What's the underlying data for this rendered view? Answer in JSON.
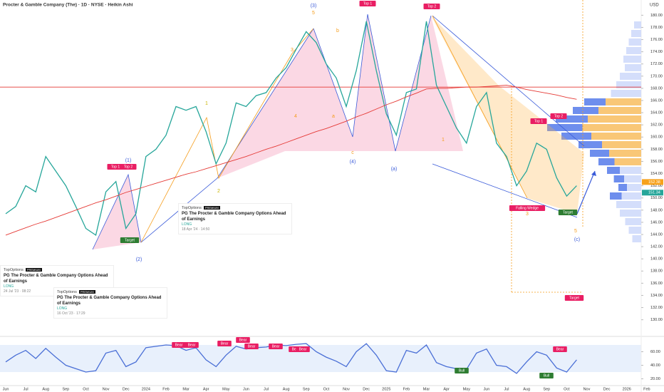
{
  "header": {
    "title": "Procter & Gamble Company (The) · 1D · NYSE · Heikin Ashi",
    "currency": "USD"
  },
  "chart_data": [
    {
      "type": "line",
      "categories": [
        "Jun",
        null,
        "Jul",
        null,
        "Aug",
        null,
        "Sep",
        null,
        "Oct",
        null,
        "Nov",
        null,
        "Dec",
        null,
        "2024",
        null,
        "Feb",
        null,
        "Mar",
        null,
        "Apr",
        null,
        "May",
        null,
        "Jun",
        null,
        "Jul",
        null,
        "Aug",
        null,
        "Sep",
        null,
        "Oct",
        null,
        "Nov",
        null,
        "Dec",
        null,
        "2025",
        null,
        "Feb",
        null,
        "Mar",
        null,
        "Apr",
        null,
        "May",
        null,
        "Jun",
        null,
        "Jul",
        null,
        "Aug",
        null,
        "Sep",
        null,
        "Oct",
        null,
        "Nov",
        null,
        "Dec",
        null,
        "2026",
        null,
        "Feb",
        null
      ],
      "series": [
        {
          "color": "#26a69a",
          "values": [
            147.4,
            148.6,
            152,
            151,
            156.8,
            154.4,
            152,
            148.6,
            145,
            143.9,
            151,
            152.7,
            145,
            147.4,
            156.8,
            158,
            160.3,
            165,
            164.4,
            165,
            160.9,
            155.6,
            159,
            165.6,
            165,
            166.8,
            167.3,
            169.7,
            171.4,
            174.4,
            177.3,
            175.5,
            172,
            169.7,
            165,
            170.9,
            179,
            170.9,
            163.8,
            160.3,
            167.3,
            167.9,
            179,
            168.5,
            165,
            161.5,
            159,
            165,
            167.3,
            159,
            156.8,
            152,
            154.4,
            159,
            158,
            153.3,
            150.3,
            152,
            null,
            null,
            null,
            null,
            null,
            null,
            null,
            null
          ]
        },
        {
          "color": "#e53935",
          "values": [
            143.9,
            144.5,
            145.1,
            145.7,
            146.2,
            146.8,
            147.4,
            148.0,
            148.6,
            149.2,
            149.7,
            150.3,
            150.9,
            151.4,
            151.9,
            152.4,
            152.9,
            153.4,
            153.9,
            154.3,
            154.8,
            155.3,
            155.8,
            156.3,
            156.8,
            157.4,
            158.0,
            158.5,
            159.1,
            159.7,
            160.3,
            160.9,
            161.4,
            162.0,
            162.6,
            163.3,
            163.9,
            164.6,
            165.3,
            165.9,
            166.6,
            167.2,
            167.9,
            168.0,
            168.0,
            168.1,
            168.2,
            168.2,
            168.3,
            168.4,
            168.5,
            168.2,
            167.8,
            167.5,
            167.2,
            166.9,
            166.5,
            166.2,
            null,
            null,
            null,
            null,
            null,
            null,
            null,
            null
          ]
        }
      ],
      "ylim": [
        127.5,
        182.5
      ],
      "yticks": [
        {
          "value": 130,
          "label": "130.00"
        },
        {
          "value": 132,
          "label": "132.00"
        },
        {
          "value": 134,
          "label": "134.00"
        },
        {
          "value": 136,
          "label": "136.00"
        },
        {
          "value": 138,
          "label": "138.00"
        },
        {
          "value": 140,
          "label": "140.00"
        },
        {
          "value": 142,
          "label": "142.00"
        },
        {
          "value": 144,
          "label": "144.00"
        },
        {
          "value": 146,
          "label": "146.00"
        },
        {
          "value": 148,
          "label": "148.00"
        },
        {
          "value": 150,
          "label": "150.00"
        },
        {
          "value": 152,
          "label": "152.00"
        },
        {
          "value": 154,
          "label": "154.00"
        },
        {
          "value": 156,
          "label": "156.00"
        },
        {
          "value": 158,
          "label": "158.00"
        },
        {
          "value": 160,
          "label": "160.00"
        },
        {
          "value": 162,
          "label": "162.00"
        },
        {
          "value": 164,
          "label": "164.00"
        },
        {
          "value": 166,
          "label": "166.00"
        },
        {
          "value": 168,
          "label": "168.00"
        },
        {
          "value": 170,
          "label": "170.00"
        },
        {
          "value": 172,
          "label": "172.00"
        },
        {
          "value": 174,
          "label": "174.00"
        },
        {
          "value": 176,
          "label": "176.00"
        },
        {
          "value": 178,
          "label": "178.00"
        },
        {
          "value": 180,
          "label": "180.00"
        }
      ],
      "hlines": [
        168.2
      ],
      "price_tags": [
        {
          "value": 152.38,
          "color": "#f7a21b"
        },
        {
          "value": 151.34,
          "color": "#26a69a"
        }
      ]
    },
    {
      "type": "line",
      "series": [
        {
          "color": "#4a6fd6",
          "values": [
            45,
            55,
            62,
            50,
            65,
            52,
            40,
            35,
            30,
            32,
            58,
            62,
            38,
            45,
            66,
            68,
            70,
            69,
            62,
            66,
            48,
            38,
            55,
            68,
            64,
            66,
            67,
            70,
            69,
            71,
            72,
            60,
            52,
            46,
            38,
            60,
            72,
            55,
            32,
            30,
            62,
            58,
            70,
            44,
            38,
            35,
            34,
            58,
            64,
            40,
            38,
            28,
            45,
            60,
            55,
            36,
            30,
            48,
            null,
            null,
            null,
            null,
            null,
            null,
            null,
            null
          ]
        }
      ],
      "ylim": [
        10,
        70
      ],
      "yticks": [
        {
          "value": 20,
          "label": "20.00"
        },
        {
          "value": 40,
          "label": "40.00"
        },
        {
          "value": 60,
          "label": "60.00"
        }
      ]
    }
  ],
  "annotations": [
    {
      "text": "(3)"
    },
    {
      "text": "5"
    },
    {
      "text": "Top 1"
    },
    {
      "text": "Top 2"
    },
    {
      "text": "(1)"
    },
    {
      "text": "Top 1"
    },
    {
      "text": "Top 2"
    },
    {
      "text": "Target"
    },
    {
      "text": "(2)"
    },
    {
      "text": "(4)"
    },
    {
      "text": "(a)"
    },
    {
      "text": "Top 1"
    },
    {
      "text": "Top 2"
    },
    {
      "text": "Falling Wedge"
    },
    {
      "text": "Target"
    },
    {
      "text": "(c)"
    },
    {
      "text": "Target"
    },
    {
      "text": "Bull"
    },
    {
      "text": "Bull"
    },
    {
      "text": "Bear"
    },
    {
      "text": "Bear"
    },
    {
      "text": "Bear"
    },
    {
      "text": "Bear"
    },
    {
      "text": "Bear"
    },
    {
      "text": "Bear"
    },
    {
      "text": "Bear"
    },
    {
      "text": "Bear"
    },
    {
      "text": "Bear"
    },
    {
      "text": "1"
    },
    {
      "text": "2"
    },
    {
      "text": "3"
    },
    {
      "text": "4"
    },
    {
      "text": "b"
    },
    {
      "text": "a"
    },
    {
      "text": "c"
    },
    {
      "text": "1"
    },
    {
      "text": "3"
    },
    {
      "text": "5"
    }
  ],
  "news": [
    {
      "source": "TopOptions",
      "badge": "PREMIUM",
      "headline": "PG The Procter & Gamble Company Options Ahead of Earnings",
      "signal": "LONG",
      "time": "18 Apr '24 · 14:50"
    },
    {
      "source": "TopOptions",
      "badge": "PREMIUM",
      "headline": "PG The Procter & Gamble Company Options Ahead of Earnings",
      "signal": "LONG",
      "time": "24 Jul '23 · 08:22"
    },
    {
      "source": "TopOptions",
      "badge": "PREMIUM",
      "headline": "PG The Procter & Gamble Company Options Ahead of Earnings",
      "signal": "LONG",
      "time": "16 Oct '23 · 17:29"
    }
  ]
}
